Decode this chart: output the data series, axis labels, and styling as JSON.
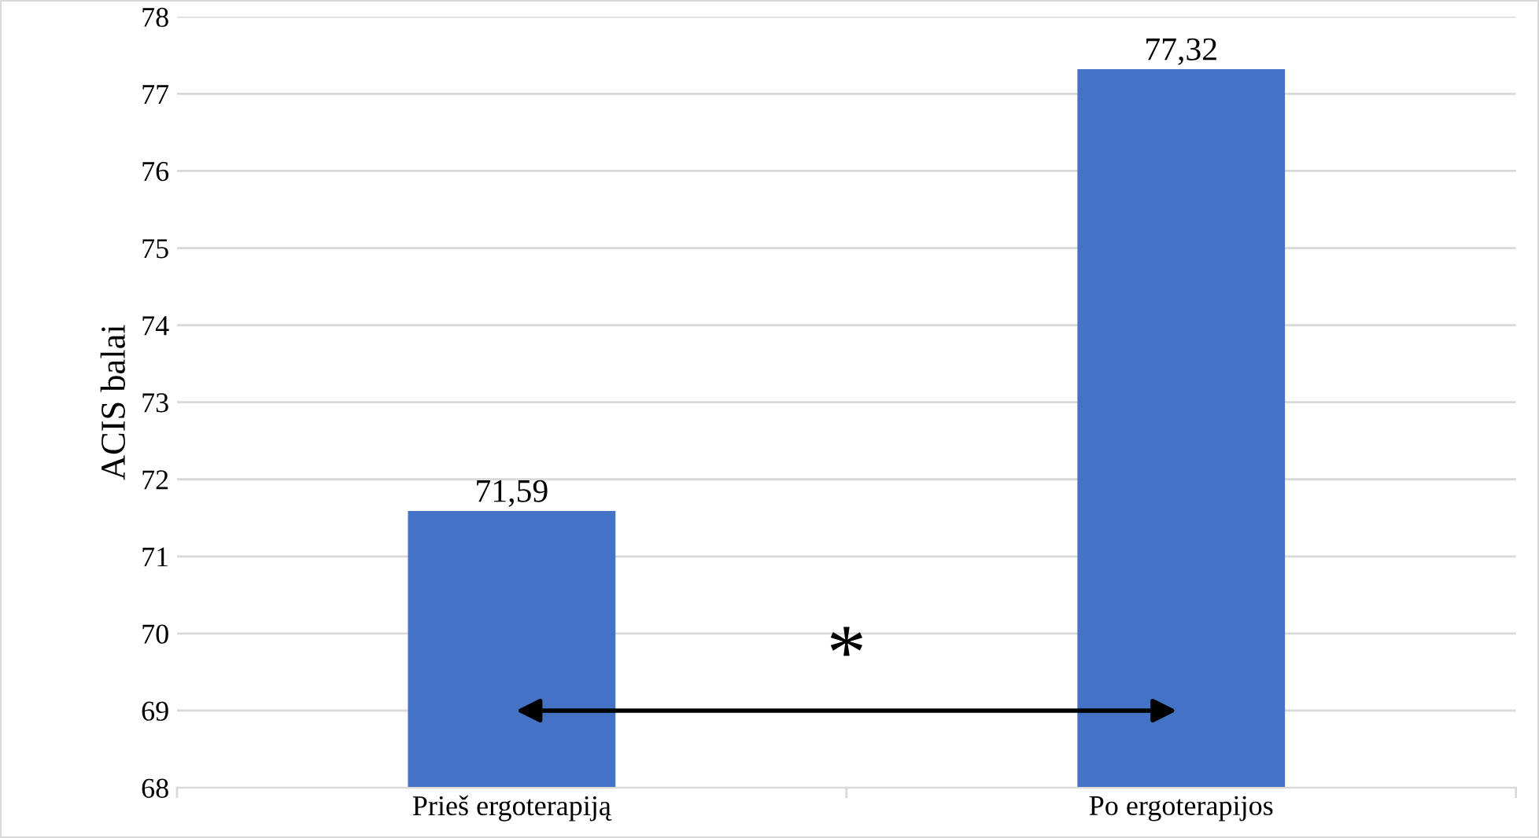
{
  "chart_data": {
    "type": "bar",
    "ylabel": "ACIS balai",
    "categories": [
      "Prieš ergoterapiją",
      "Po ergoterapijos"
    ],
    "values": [
      71.59,
      77.32
    ],
    "color": "#4472c4",
    "value_labels": [
      "71,59",
      "77,32"
    ],
    "ylim": [
      68,
      78
    ],
    "yticks": [
      68,
      69,
      70,
      71,
      72,
      73,
      74,
      75,
      76,
      77,
      78
    ],
    "grid": "y",
    "annotations": [
      "*"
    ]
  }
}
